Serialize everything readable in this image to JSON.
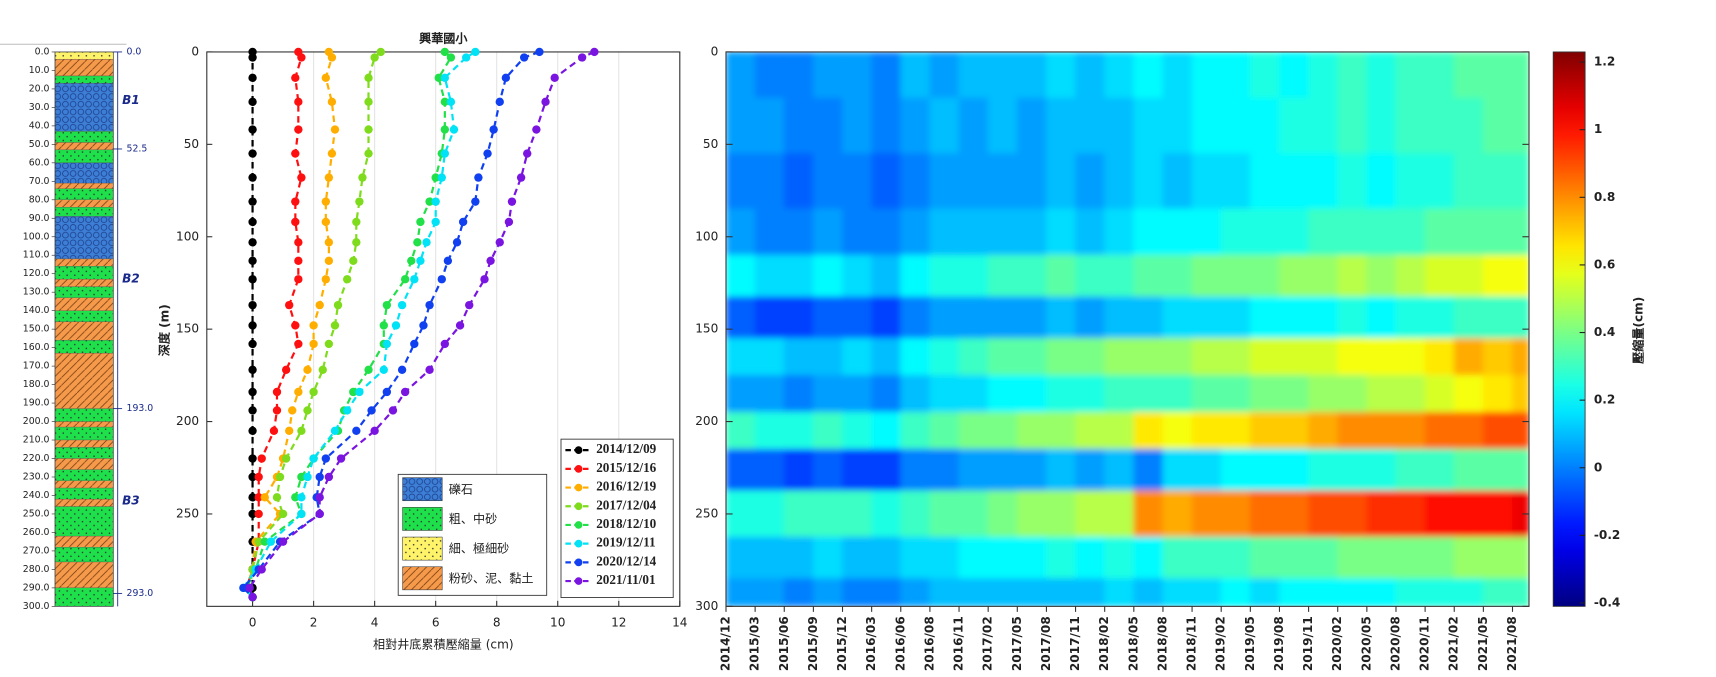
{
  "chart_data": [
    {
      "type": "lithology_column",
      "ylim": [
        0,
        300
      ],
      "yticks": [
        {
          "value": 0,
          "label": "0.0"
        },
        {
          "value": 10,
          "label": "10.0"
        },
        {
          "value": 20,
          "label": "20.0"
        },
        {
          "value": 30,
          "label": "30.0"
        },
        {
          "value": 40,
          "label": "40.0"
        },
        {
          "value": 50,
          "label": "50.0"
        },
        {
          "value": 60,
          "label": "60.0"
        },
        {
          "value": 70,
          "label": "70.0"
        },
        {
          "value": 80,
          "label": "80.0"
        },
        {
          "value": 90,
          "label": "90.0"
        },
        {
          "value": 100,
          "label": "100.0"
        },
        {
          "value": 110,
          "label": "110.0"
        },
        {
          "value": 120,
          "label": "120.0"
        },
        {
          "value": 130,
          "label": "130.0"
        },
        {
          "value": 140,
          "label": "140.0"
        },
        {
          "value": 150,
          "label": "150.0"
        },
        {
          "value": 160,
          "label": "160.0"
        },
        {
          "value": 170,
          "label": "170.0"
        },
        {
          "value": 180,
          "label": "180.0"
        },
        {
          "value": 190,
          "label": "190.0"
        },
        {
          "value": 200,
          "label": "200.0"
        },
        {
          "value": 210,
          "label": "210.0"
        },
        {
          "value": 220,
          "label": "220.0"
        },
        {
          "value": 230,
          "label": "230.0"
        },
        {
          "value": 240,
          "label": "240.0"
        },
        {
          "value": 250,
          "label": "250.0"
        },
        {
          "value": 260,
          "label": "260.0"
        },
        {
          "value": 270,
          "label": "270.0"
        },
        {
          "value": 280,
          "label": "280.0"
        },
        {
          "value": 290,
          "label": "290.0"
        },
        {
          "value": 300,
          "label": "300.0"
        }
      ],
      "markers": [
        {
          "value": 0,
          "label": "0.0"
        },
        {
          "value": 52.5,
          "label": "52.5"
        },
        {
          "value": 193,
          "label": "193.0"
        },
        {
          "value": 293,
          "label": "293.0"
        }
      ],
      "zones": [
        "B1",
        "B2",
        "B3"
      ],
      "legend": [
        {
          "name": "礫石",
          "color": "#3d7fd6",
          "pattern": "circles"
        },
        {
          "name": "粗、中砂",
          "color": "#1ee04a",
          "pattern": "dots"
        },
        {
          "name": "細、極細砂",
          "color": "#fff36a",
          "pattern": "dots"
        },
        {
          "name": "粉砂、泥、黏土",
          "color": "#f59a4a",
          "pattern": "hatch"
        }
      ],
      "layers": [
        {
          "top": 0,
          "bottom": 4,
          "legend": 2
        },
        {
          "top": 4,
          "bottom": 13,
          "legend": 3
        },
        {
          "top": 13,
          "bottom": 17,
          "legend": 1
        },
        {
          "top": 17,
          "bottom": 43,
          "legend": 0
        },
        {
          "top": 43,
          "bottom": 49,
          "legend": 1
        },
        {
          "top": 49,
          "bottom": 53,
          "legend": 3
        },
        {
          "top": 53,
          "bottom": 60,
          "legend": 1
        },
        {
          "top": 60,
          "bottom": 71,
          "legend": 0
        },
        {
          "top": 71,
          "bottom": 74,
          "legend": 3
        },
        {
          "top": 74,
          "bottom": 80,
          "legend": 1
        },
        {
          "top": 80,
          "bottom": 84,
          "legend": 3
        },
        {
          "top": 84,
          "bottom": 89,
          "legend": 1
        },
        {
          "top": 89,
          "bottom": 112,
          "legend": 0
        },
        {
          "top": 112,
          "bottom": 116,
          "legend": 3
        },
        {
          "top": 116,
          "bottom": 123,
          "legend": 1
        },
        {
          "top": 123,
          "bottom": 127,
          "legend": 3
        },
        {
          "top": 127,
          "bottom": 133,
          "legend": 1
        },
        {
          "top": 133,
          "bottom": 140,
          "legend": 3
        },
        {
          "top": 140,
          "bottom": 146,
          "legend": 1
        },
        {
          "top": 146,
          "bottom": 156,
          "legend": 3
        },
        {
          "top": 156,
          "bottom": 163,
          "legend": 1
        },
        {
          "top": 163,
          "bottom": 193,
          "legend": 3
        },
        {
          "top": 193,
          "bottom": 200,
          "legend": 1
        },
        {
          "top": 200,
          "bottom": 203,
          "legend": 3
        },
        {
          "top": 203,
          "bottom": 210,
          "legend": 1
        },
        {
          "top": 210,
          "bottom": 214,
          "legend": 3
        },
        {
          "top": 214,
          "bottom": 220,
          "legend": 1
        },
        {
          "top": 220,
          "bottom": 226,
          "legend": 3
        },
        {
          "top": 226,
          "bottom": 232,
          "legend": 1
        },
        {
          "top": 232,
          "bottom": 236,
          "legend": 3
        },
        {
          "top": 236,
          "bottom": 242,
          "legend": 1
        },
        {
          "top": 242,
          "bottom": 246,
          "legend": 3
        },
        {
          "top": 246,
          "bottom": 262,
          "legend": 1
        },
        {
          "top": 262,
          "bottom": 268,
          "legend": 3
        },
        {
          "top": 268,
          "bottom": 276,
          "legend": 1
        },
        {
          "top": 276,
          "bottom": 290,
          "legend": 3
        },
        {
          "top": 290,
          "bottom": 300,
          "legend": 1
        }
      ]
    },
    {
      "type": "line",
      "title": "興華國小",
      "xlabel": "相對井底累積壓縮量 (cm)",
      "ylabel": "深度 (m)",
      "xlim": [
        -1.5,
        14
      ],
      "ylim": [
        0,
        300
      ],
      "y_inverted": true,
      "xticks": [
        0,
        2,
        4,
        6,
        8,
        10,
        12,
        14
      ],
      "yticks": [
        0,
        50,
        100,
        150,
        200,
        250
      ],
      "grid": true,
      "legend": "lower right",
      "depth": [
        0,
        3,
        14,
        27,
        42,
        55,
        68,
        81,
        92,
        103,
        113,
        123,
        137,
        148,
        158,
        172,
        184,
        194,
        205,
        220,
        230,
        241,
        250,
        265,
        280,
        290,
        295
      ],
      "series": [
        {
          "name": "2014/12/09",
          "color": "#000000",
          "values": [
            0,
            0,
            0,
            0,
            0,
            0,
            0,
            0,
            0,
            0,
            0,
            0,
            0,
            0,
            0,
            0,
            0,
            0,
            0,
            0,
            0,
            0,
            0,
            0,
            0,
            0,
            0
          ]
        },
        {
          "name": "2015/12/16",
          "color": "#ff1010",
          "values": [
            1.5,
            1.6,
            1.4,
            1.5,
            1.5,
            1.4,
            1.6,
            1.4,
            1.4,
            1.5,
            1.5,
            1.5,
            1.2,
            1.4,
            1.5,
            1.1,
            0.8,
            0.8,
            0.7,
            0.3,
            0.2,
            0.2,
            0.2,
            0.2,
            0,
            -0.2,
            0
          ]
        },
        {
          "name": "2016/12/19",
          "color": "#ffae00",
          "values": [
            2.5,
            2.6,
            2.4,
            2.6,
            2.7,
            2.6,
            2.5,
            2.4,
            2.4,
            2.5,
            2.5,
            2.4,
            2.2,
            2,
            2,
            1.8,
            1.5,
            1.3,
            1.2,
            1,
            0.8,
            0.4,
            0.9,
            0.1,
            0,
            -0.2,
            0
          ]
        },
        {
          "name": "2017/12/04",
          "color": "#7fdc1c",
          "values": [
            4.2,
            4,
            3.8,
            3.8,
            3.8,
            3.8,
            3.6,
            3.5,
            3.4,
            3.4,
            3.3,
            3.1,
            2.8,
            2.7,
            2.5,
            2.3,
            2,
            1.8,
            1.6,
            1.1,
            0.9,
            0.8,
            1,
            0.2,
            0,
            -0.1,
            0
          ]
        },
        {
          "name": "2018/12/10",
          "color": "#22e048",
          "values": [
            6.3,
            6.5,
            6.1,
            6.3,
            6.3,
            6.2,
            6,
            5.8,
            5.5,
            5.4,
            5.2,
            5,
            4.4,
            4.3,
            4.3,
            3.8,
            3.3,
            3,
            2.8,
            2,
            1.6,
            1.4,
            1.6,
            0.4,
            0.1,
            -0.2,
            0
          ]
        },
        {
          "name": "2019/12/11",
          "color": "#00e2f5",
          "values": [
            7.3,
            7,
            6.3,
            6.5,
            6.6,
            6.3,
            6.2,
            6,
            6,
            5.7,
            5.5,
            5.3,
            4.9,
            4.7,
            4.4,
            4.3,
            3.5,
            3.1,
            2.7,
            2,
            1.8,
            1.6,
            1.6,
            0.6,
            0.1,
            -0.3,
            0
          ]
        },
        {
          "name": "2020/12/14",
          "color": "#1040f0",
          "values": [
            9.4,
            8.9,
            8.3,
            8.1,
            7.9,
            7.7,
            7.4,
            7.3,
            6.9,
            6.7,
            6.4,
            6.2,
            5.8,
            5.6,
            5.3,
            4.9,
            4.4,
            3.9,
            3.4,
            2.4,
            2.2,
            2.1,
            2.2,
            0.9,
            0.2,
            -0.3,
            0
          ]
        },
        {
          "name": "2021/11/01",
          "color": "#7a14e0",
          "values": [
            11.2,
            10.8,
            9.9,
            9.6,
            9.3,
            9,
            8.8,
            8.5,
            8.4,
            8.1,
            7.8,
            7.6,
            7.1,
            6.8,
            6.3,
            5.8,
            5,
            4.6,
            4,
            2.9,
            2.5,
            2.2,
            2.2,
            1,
            0.3,
            -0.1,
            0
          ]
        }
      ]
    },
    {
      "type": "heatmap",
      "x": [
        "2014/12",
        "2015/03",
        "2015/06",
        "2015/09",
        "2015/12",
        "2016/03",
        "2016/06",
        "2016/08",
        "2016/11",
        "2017/02",
        "2017/05",
        "2017/08",
        "2017/11",
        "2018/02",
        "2018/05",
        "2018/08",
        "2018/11",
        "2019/02",
        "2019/05",
        "2019/08",
        "2019/11",
        "2020/02",
        "2020/05",
        "2020/08",
        "2020/11",
        "2021/02",
        "2021/05",
        "2021/08"
      ],
      "depth": [
        10,
        40,
        70,
        100,
        120,
        145,
        165,
        185,
        205,
        225,
        250,
        275,
        295
      ],
      "ylim": [
        0,
        300
      ],
      "y_inverted": true,
      "yticks": [
        0,
        50,
        100,
        150,
        200,
        250,
        300
      ],
      "zlim": [
        -0.41,
        1.23
      ],
      "colormap": "jet",
      "colorbar_ticks": [
        -0.4,
        -0.2,
        0,
        0.2,
        0.4,
        0.6,
        0.8,
        1,
        1.2
      ],
      "colorbar_label": "壓縮量(cm)",
      "z": [
        [
          0.05,
          0,
          0,
          0.05,
          0.05,
          0,
          0.1,
          0.05,
          0.1,
          0.1,
          0.1,
          0.15,
          0.1,
          0.15,
          0.2,
          0.15,
          0.2,
          0.2,
          0.25,
          0.2,
          0.25,
          0.3,
          0.25,
          0.3,
          0.3,
          0.35,
          0.35,
          0.35
        ],
        [
          0.05,
          0.05,
          0,
          0,
          0.05,
          0,
          0.05,
          0.1,
          0.05,
          0.1,
          0.05,
          0.1,
          0.1,
          0.1,
          0.15,
          0.15,
          0.2,
          0.2,
          0.2,
          0.25,
          0.25,
          0.3,
          0.25,
          0.3,
          0.3,
          0.3,
          0.35,
          0.35
        ],
        [
          0,
          0,
          -0.05,
          0,
          0,
          -0.05,
          0,
          0.05,
          0.05,
          0.05,
          0.05,
          0.1,
          0.05,
          0.1,
          0.15,
          0.1,
          0.15,
          0.15,
          0.2,
          0.2,
          0.2,
          0.25,
          0.2,
          0.25,
          0.25,
          0.3,
          0.3,
          0.3
        ],
        [
          0.05,
          0,
          0,
          0.05,
          0,
          0,
          0.05,
          0.1,
          0.1,
          0.1,
          0.1,
          0.15,
          0.1,
          0.15,
          0.2,
          0.2,
          0.2,
          0.25,
          0.25,
          0.25,
          0.3,
          0.3,
          0.3,
          0.3,
          0.35,
          0.35,
          0.35,
          0.35
        ],
        [
          0.2,
          0.15,
          0.15,
          0.2,
          0.15,
          0.1,
          0.2,
          0.25,
          0.25,
          0.3,
          0.3,
          0.35,
          0.3,
          0.3,
          0.35,
          0.35,
          0.4,
          0.4,
          0.4,
          0.45,
          0.45,
          0.5,
          0.45,
          0.5,
          0.55,
          0.55,
          0.6,
          0.6
        ],
        [
          -0.05,
          -0.1,
          -0.1,
          -0.05,
          -0.05,
          -0.1,
          0,
          0.05,
          0.05,
          0.05,
          0.05,
          0.1,
          0.05,
          0.1,
          0.1,
          0.15,
          0.15,
          0.15,
          0.2,
          0.2,
          0.2,
          0.25,
          0.2,
          0.25,
          0.25,
          0.3,
          0.3,
          0.3
        ],
        [
          0.15,
          0.15,
          0.1,
          0.1,
          0.15,
          0.1,
          0.2,
          0.25,
          0.3,
          0.35,
          0.35,
          0.4,
          0.4,
          0.45,
          0.45,
          0.45,
          0.5,
          0.5,
          0.55,
          0.55,
          0.55,
          0.6,
          0.6,
          0.6,
          0.65,
          0.75,
          0.7,
          0.75
        ],
        [
          0.05,
          0.05,
          0,
          0.05,
          0.05,
          0,
          0.1,
          0.15,
          0.15,
          0.2,
          0.2,
          0.25,
          0.25,
          0.3,
          0.3,
          0.3,
          0.35,
          0.35,
          0.4,
          0.4,
          0.45,
          0.45,
          0.5,
          0.5,
          0.55,
          0.6,
          0.65,
          0.7
        ],
        [
          0.3,
          0.25,
          0.25,
          0.3,
          0.25,
          0.2,
          0.3,
          0.35,
          0.4,
          0.4,
          0.45,
          0.45,
          0.5,
          0.5,
          0.65,
          0.6,
          0.65,
          0.65,
          0.7,
          0.7,
          0.75,
          0.8,
          0.8,
          0.8,
          0.85,
          0.85,
          0.9,
          0.9
        ],
        [
          -0.05,
          -0.05,
          -0.1,
          -0.05,
          -0.1,
          -0.1,
          0,
          0,
          0.05,
          0.05,
          0.05,
          0.1,
          0.05,
          0.1,
          0,
          0.15,
          0.15,
          0.2,
          0.2,
          0.2,
          0.25,
          0.25,
          0.25,
          0.3,
          0.3,
          0.35,
          0.35,
          0.35
        ],
        [
          0.25,
          0.25,
          0.3,
          0.3,
          0.3,
          0.25,
          0.3,
          0.35,
          0.35,
          0.4,
          0.45,
          0.45,
          0.5,
          0.5,
          0.8,
          0.75,
          0.8,
          0.8,
          0.85,
          0.85,
          0.9,
          0.9,
          0.95,
          0.95,
          1,
          1,
          1,
          1.05
        ],
        [
          0.1,
          0.1,
          0.1,
          0.15,
          0.1,
          0.1,
          0.15,
          0.15,
          0.2,
          0.2,
          0.2,
          0.25,
          0.2,
          0.25,
          0.2,
          0.3,
          0.3,
          0.3,
          0.35,
          0.35,
          0.35,
          0.4,
          0.4,
          0.4,
          0.4,
          0.45,
          0.45,
          0.45
        ],
        [
          0.05,
          0.05,
          0,
          0.05,
          0,
          0,
          0.05,
          0.1,
          0.1,
          0.1,
          0.1,
          0.1,
          0.1,
          0.15,
          0.1,
          0.15,
          0.15,
          0.2,
          0.15,
          0.2,
          0.2,
          0.2,
          0.2,
          0.25,
          0.25,
          0.25,
          0.3,
          0.3
        ]
      ]
    }
  ]
}
